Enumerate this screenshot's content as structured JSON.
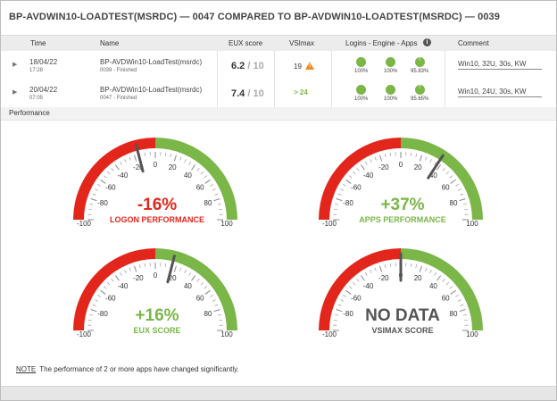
{
  "title": "BP-AVDWIN10-LOADTEST(MSRDC) — 0047 COMPARED TO BP-AVDWIN10-LOADTEST(MSRDC) — 0039",
  "columns": {
    "time": "Time",
    "name": "Name",
    "eux": "EUX score",
    "vsimax": "VSImax",
    "logins": "Logins - Engine - Apps",
    "comment": "Comment"
  },
  "rows": [
    {
      "date": "18/04/22",
      "time": "17:28",
      "name": "BP-AVDWin10-LoadTest(msrdc)",
      "status": "0039 - Finished",
      "eux_score": "6.2",
      "eux_max": "/ 10",
      "vsimax": "19",
      "vsimax_warning": true,
      "pct": [
        "100%",
        "100%",
        "95.83%"
      ],
      "pie_fill": [
        1.0,
        1.0,
        0.9583
      ],
      "comment": "Win10, 32U, 30s, KW"
    },
    {
      "date": "20/04/22",
      "time": "07:05",
      "name": "BP-AVDWin10-LoadTest(msrdc)",
      "status": "0047 - Finished",
      "eux_score": "7.4",
      "eux_max": "/ 10",
      "vsimax": "> 24",
      "vsimax_warning": false,
      "pct": [
        "100%",
        "100%",
        "95.65%"
      ],
      "pie_fill": [
        1.0,
        1.0,
        0.9565
      ],
      "comment": "Win10, 24U, 30s, KW"
    }
  ],
  "section_title": "Performance",
  "gauge_ticks": [
    "-100",
    "-80",
    "-60",
    "-40",
    "-20",
    "0",
    "20",
    "40",
    "60",
    "80",
    "100"
  ],
  "gauges": [
    {
      "value_text": "-16%",
      "label": "LOGON PERFORMANCE",
      "value": -16,
      "color": "red"
    },
    {
      "value_text": "+37%",
      "label": "APPS PERFORMANCE",
      "value": 37,
      "color": "green"
    },
    {
      "value_text": "+16%",
      "label": "EUX SCORE",
      "value": 16,
      "color": "green"
    },
    {
      "value_text": "NO DATA",
      "label": "VSIMAX SCORE",
      "value": 0,
      "color": "grey"
    }
  ],
  "note_label": "NOTE",
  "note_text": "The performance of 2 or more apps have changed significantly.",
  "colors": {
    "red": "#e3261b",
    "green": "#7ab648",
    "needle": "#555555",
    "header_bg": "#ececec"
  },
  "icons": {
    "info": "info-icon",
    "expand": "chevron-right-icon",
    "warning": "warning-icon"
  }
}
